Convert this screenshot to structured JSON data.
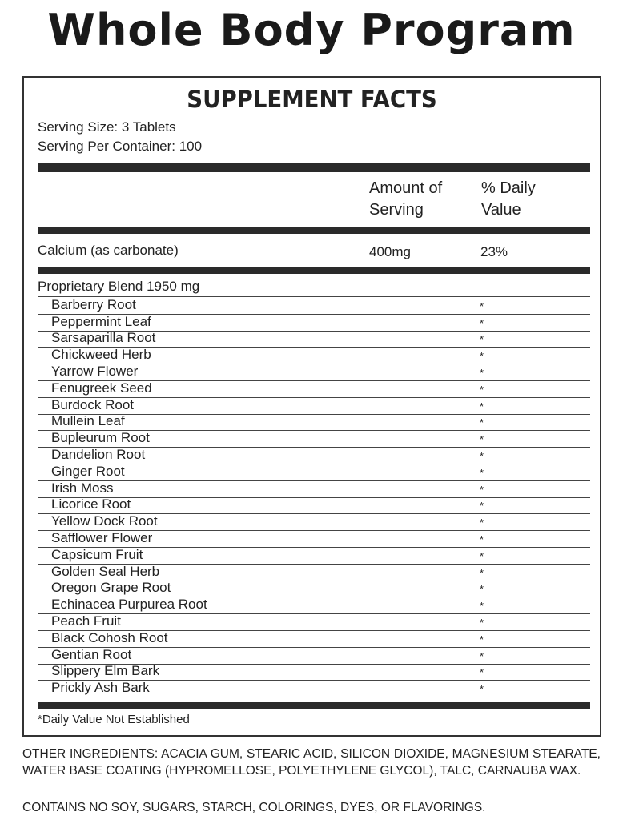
{
  "title": "Whole Body Program",
  "panel": {
    "heading": "SUPPLEMENT FACTS",
    "serving_size": "Serving Size: 3 Tablets",
    "servings_per_container": "Serving Per Container: 100",
    "col_amount_1": "Amount of",
    "col_amount_2": "Serving",
    "col_dv_1": "% Daily",
    "col_dv_2": "Value",
    "calcium": {
      "name": "Calcium (as carbonate)",
      "amount": "400mg",
      "dv": "23%"
    },
    "blend": "Proprietary Blend 1950 mg",
    "ingredients": [
      {
        "name": "Barberry Root",
        "dv": "*"
      },
      {
        "name": "Peppermint Leaf",
        "dv": "*"
      },
      {
        "name": "Sarsaparilla Root",
        "dv": "*"
      },
      {
        "name": "Chickweed Herb",
        "dv": "*"
      },
      {
        "name": "Yarrow Flower",
        "dv": "*"
      },
      {
        "name": "Fenugreek Seed",
        "dv": "*"
      },
      {
        "name": "Burdock Root",
        "dv": "*"
      },
      {
        "name": "Mullein Leaf",
        "dv": "*"
      },
      {
        "name": "Bupleurum Root",
        "dv": "*"
      },
      {
        "name": "Dandelion Root",
        "dv": "*"
      },
      {
        "name": "Ginger Root",
        "dv": "*"
      },
      {
        "name": "Irish Moss",
        "dv": "*"
      },
      {
        "name": "Licorice Root",
        "dv": "*"
      },
      {
        "name": "Yellow Dock Root",
        "dv": "*"
      },
      {
        "name": "Safflower Flower",
        "dv": "*"
      },
      {
        "name": "Capsicum Fruit",
        "dv": "*"
      },
      {
        "name": "Golden Seal Herb",
        "dv": "*"
      },
      {
        "name": "Oregon Grape Root",
        "dv": "*"
      },
      {
        "name": "Echinacea Purpurea Root",
        "dv": "*"
      },
      {
        "name": "Peach Fruit",
        "dv": "*"
      },
      {
        "name": "Black Cohosh Root",
        "dv": "*"
      },
      {
        "name": "Gentian Root",
        "dv": "*"
      },
      {
        "name": "Slippery Elm Bark",
        "dv": "*"
      },
      {
        "name": "Prickly Ash Bark",
        "dv": "*"
      }
    ],
    "footnote": "*Daily Value Not Established"
  },
  "other_ingredients": "OTHER INGREDIENTS: ACACIA GUM, STEARIC ACID, SILICON DIOXIDE, MAGNESIUM STEARATE, WATER BASE COATING (HYPROMELLOSE, POLYETHYLENE GLYCOL), TALC, CARNAUBA WAX.",
  "contains": "CONTAINS NO SOY, SUGARS, STARCH, COLORINGS, DYES, OR FLAVORINGS."
}
